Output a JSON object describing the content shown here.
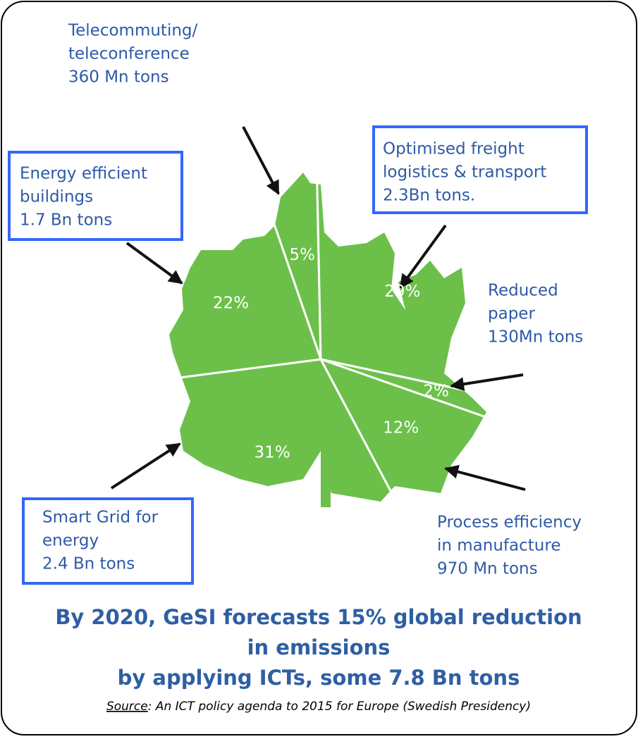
{
  "chart_data": {
    "type": "pie",
    "values": [
      5,
      29,
      2,
      12,
      31,
      22
    ],
    "value_labels": [
      "5%",
      "29%",
      "2%",
      "12%",
      "31%",
      "22%"
    ],
    "color": "#6cc04a",
    "annotations": [
      {
        "lines": [
          "Telecommuting/",
          "teleconference",
          "360 Mn tons"
        ],
        "boxed": false
      },
      {
        "lines": [
          "Optimised freight",
          "logistics & transport",
          "2.3Bn tons."
        ],
        "boxed": true
      },
      {
        "lines": [
          "Reduced",
          "paper",
          "130Mn tons"
        ],
        "boxed": false
      },
      {
        "lines": [
          "Process efficiency",
          "in manufacture",
          "970 Mn tons"
        ],
        "boxed": false
      },
      {
        "lines": [
          "Smart Grid for",
          "energy",
          "2.4 Bn tons"
        ],
        "boxed": true
      },
      {
        "lines": [
          "Energy efficient",
          "buildings",
          "1.7 Bn tons"
        ],
        "boxed": true
      }
    ],
    "title": [
      "By 2020, GeSI forecasts 15% global reduction",
      "in emissions",
      "by applying ICTs, some 7.8 Bn tons"
    ],
    "source": {
      "label": "Source",
      "text": ": An ICT policy agenda to 2015 for Europe (Swedish Presidency)"
    }
  }
}
